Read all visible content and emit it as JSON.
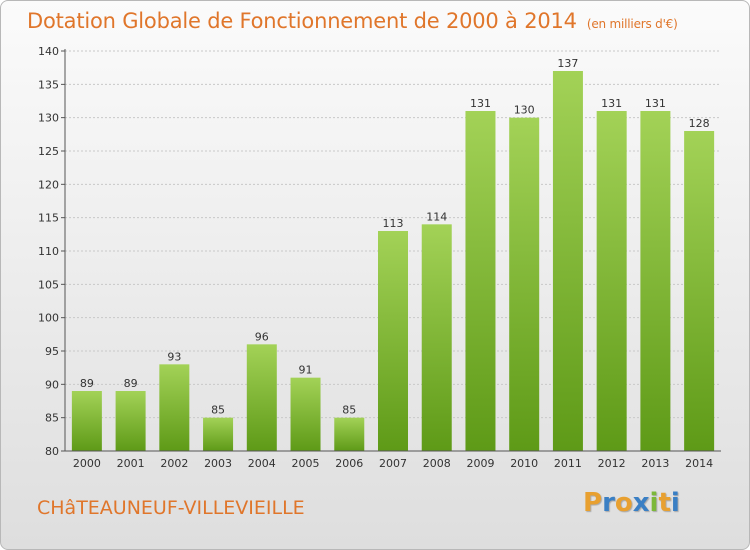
{
  "title": "Dotation Globale de Fonctionnement de 2000 à 2014",
  "subtitle": "(en milliers d'€)",
  "commune": "CHâTEAUNEUF-VILLEVIEILLE",
  "logo": {
    "letters": [
      "P",
      "r",
      "o",
      "x",
      "i",
      "t",
      "i"
    ],
    "colors": [
      "#e8a030",
      "#3a7fc4",
      "#e8a030",
      "#3a7fc4",
      "#7cb83a",
      "#e8a030",
      "#3a7fc4"
    ]
  },
  "colors": {
    "bar_top": "#a3d257",
    "bar_bottom": "#5e9a17",
    "grid": "#c8c8c8",
    "accent": "#e0762b"
  },
  "chart_data": {
    "type": "bar",
    "categories": [
      "2000",
      "2001",
      "2002",
      "2003",
      "2004",
      "2005",
      "2006",
      "2007",
      "2008",
      "2009",
      "2010",
      "2011",
      "2012",
      "2013",
      "2014"
    ],
    "values": [
      89,
      89,
      93,
      85,
      96,
      91,
      85,
      113,
      114,
      131,
      130,
      137,
      131,
      131,
      128
    ],
    "ylim": [
      80,
      140
    ],
    "yticks": [
      80,
      85,
      90,
      95,
      100,
      105,
      110,
      115,
      120,
      125,
      130,
      135,
      140
    ],
    "grid": true
  }
}
